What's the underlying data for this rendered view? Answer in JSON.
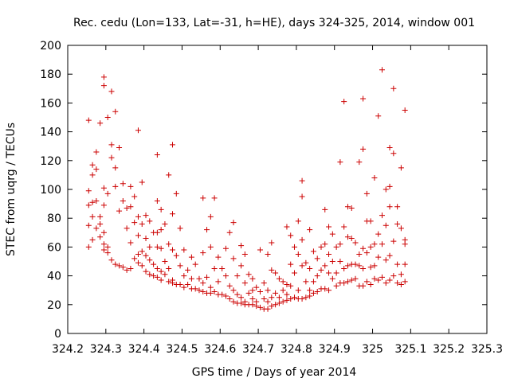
{
  "chart_data": {
    "type": "scatter",
    "title": "Rec. cedu (Lon=133, Lat=-31, h=HE), days 324-325, 2014, window 001",
    "xlabel": "GPS time / Days of year 2014",
    "ylabel": "STEC from uqrg / TECUs",
    "xlim": [
      324.2,
      325.3
    ],
    "ylim": [
      0,
      200
    ],
    "x_ticks": [
      "324.2",
      "324.3",
      "324.4",
      "324.5",
      "324.6",
      "324.7",
      "324.8",
      "324.9",
      "325",
      "325.1",
      "325.2",
      "325.3"
    ],
    "y_ticks": [
      "0",
      "20",
      "40",
      "60",
      "80",
      "100",
      "120",
      "140",
      "160",
      "180",
      "200"
    ],
    "grid": false,
    "legend": "none",
    "marker": "plus",
    "color": "#cc0000",
    "series": [
      {
        "points": [
          [
            324.255,
            148
          ],
          [
            324.255,
            99
          ],
          [
            324.255,
            89
          ],
          [
            324.255,
            75
          ],
          [
            324.255,
            60
          ],
          [
            324.265,
            117
          ],
          [
            324.265,
            110
          ],
          [
            324.265,
            91
          ],
          [
            324.265,
            81
          ],
          [
            324.265,
            65
          ],
          [
            324.275,
            126
          ],
          [
            324.275,
            114
          ],
          [
            324.275,
            92
          ],
          [
            324.275,
            73
          ],
          [
            324.285,
            146
          ],
          [
            324.285,
            81
          ],
          [
            324.285,
            76
          ],
          [
            324.285,
            67
          ],
          [
            324.295,
            178
          ],
          [
            324.295,
            172
          ],
          [
            324.295,
            101
          ],
          [
            324.295,
            89
          ],
          [
            324.295,
            70
          ],
          [
            324.295,
            62
          ],
          [
            324.295,
            58
          ],
          [
            324.305,
            150
          ],
          [
            324.305,
            97
          ],
          [
            324.305,
            60
          ],
          [
            324.305,
            56
          ],
          [
            324.315,
            168
          ],
          [
            324.315,
            131
          ],
          [
            324.315,
            122
          ],
          [
            324.315,
            51
          ],
          [
            324.325,
            154
          ],
          [
            324.325,
            115
          ],
          [
            324.325,
            102
          ],
          [
            324.325,
            48
          ],
          [
            324.335,
            129
          ],
          [
            324.335,
            85
          ],
          [
            324.335,
            47
          ],
          [
            324.345,
            104
          ],
          [
            324.345,
            92
          ],
          [
            324.345,
            46
          ],
          [
            324.355,
            87
          ],
          [
            324.355,
            73
          ],
          [
            324.355,
            44
          ],
          [
            324.365,
            102
          ],
          [
            324.365,
            88
          ],
          [
            324.365,
            63
          ],
          [
            324.365,
            45
          ],
          [
            324.375,
            95
          ],
          [
            324.375,
            77
          ],
          [
            324.375,
            52
          ],
          [
            324.385,
            141
          ],
          [
            324.385,
            81
          ],
          [
            324.385,
            68
          ],
          [
            324.385,
            55
          ],
          [
            324.385,
            49
          ],
          [
            324.395,
            105
          ],
          [
            324.395,
            76
          ],
          [
            324.395,
            57
          ],
          [
            324.395,
            47
          ],
          [
            324.405,
            82
          ],
          [
            324.405,
            66
          ],
          [
            324.405,
            54
          ],
          [
            324.405,
            43
          ],
          [
            324.415,
            78
          ],
          [
            324.415,
            60
          ],
          [
            324.415,
            51
          ],
          [
            324.415,
            41
          ],
          [
            324.425,
            70
          ],
          [
            324.425,
            48
          ],
          [
            324.425,
            40
          ],
          [
            324.435,
            124
          ],
          [
            324.435,
            92
          ],
          [
            324.435,
            70
          ],
          [
            324.435,
            60
          ],
          [
            324.435,
            45
          ],
          [
            324.435,
            39
          ],
          [
            324.445,
            86
          ],
          [
            324.445,
            72
          ],
          [
            324.445,
            59
          ],
          [
            324.445,
            43
          ],
          [
            324.445,
            37
          ],
          [
            324.455,
            76
          ],
          [
            324.455,
            50
          ],
          [
            324.455,
            41
          ],
          [
            324.465,
            110
          ],
          [
            324.465,
            62
          ],
          [
            324.465,
            45
          ],
          [
            324.465,
            36
          ],
          [
            324.475,
            131
          ],
          [
            324.475,
            83
          ],
          [
            324.475,
            58
          ],
          [
            324.475,
            37
          ],
          [
            324.475,
            35
          ],
          [
            324.485,
            97
          ],
          [
            324.485,
            54
          ],
          [
            324.485,
            34
          ],
          [
            324.495,
            73
          ],
          [
            324.495,
            47
          ],
          [
            324.495,
            34
          ],
          [
            324.505,
            58
          ],
          [
            324.505,
            40
          ],
          [
            324.505,
            32
          ],
          [
            324.515,
            44
          ],
          [
            324.515,
            34
          ],
          [
            324.525,
            53
          ],
          [
            324.525,
            38
          ],
          [
            324.525,
            31
          ],
          [
            324.535,
            48
          ],
          [
            324.535,
            31
          ],
          [
            324.545,
            38
          ],
          [
            324.545,
            30
          ],
          [
            324.555,
            94
          ],
          [
            324.555,
            56
          ],
          [
            324.555,
            35
          ],
          [
            324.555,
            29
          ],
          [
            324.565,
            72
          ],
          [
            324.565,
            39
          ],
          [
            324.565,
            28
          ],
          [
            324.575,
            81
          ],
          [
            324.575,
            60
          ],
          [
            324.575,
            32
          ],
          [
            324.575,
            28
          ],
          [
            324.585,
            94
          ],
          [
            324.585,
            45
          ],
          [
            324.585,
            29
          ],
          [
            324.595,
            53
          ],
          [
            324.595,
            36
          ],
          [
            324.595,
            27
          ],
          [
            324.605,
            45
          ],
          [
            324.605,
            27
          ],
          [
            324.615,
            59
          ],
          [
            324.615,
            40
          ],
          [
            324.615,
            26
          ],
          [
            324.625,
            70
          ],
          [
            324.625,
            33
          ],
          [
            324.625,
            24
          ],
          [
            324.635,
            77
          ],
          [
            324.635,
            52
          ],
          [
            324.635,
            30
          ],
          [
            324.635,
            22
          ],
          [
            324.645,
            40
          ],
          [
            324.645,
            27
          ],
          [
            324.645,
            21
          ],
          [
            324.655,
            61
          ],
          [
            324.655,
            47
          ],
          [
            324.655,
            25
          ],
          [
            324.655,
            21
          ],
          [
            324.665,
            55
          ],
          [
            324.665,
            35
          ],
          [
            324.665,
            22
          ],
          [
            324.665,
            20
          ],
          [
            324.675,
            41
          ],
          [
            324.675,
            28
          ],
          [
            324.675,
            20
          ],
          [
            324.685,
            38
          ],
          [
            324.685,
            30
          ],
          [
            324.685,
            24
          ],
          [
            324.685,
            20
          ],
          [
            324.695,
            32
          ],
          [
            324.695,
            22
          ],
          [
            324.695,
            19
          ],
          [
            324.705,
            58
          ],
          [
            324.705,
            29
          ],
          [
            324.705,
            18
          ],
          [
            324.715,
            35
          ],
          [
            324.715,
            24
          ],
          [
            324.715,
            17
          ],
          [
            324.725,
            55
          ],
          [
            324.725,
            30
          ],
          [
            324.725,
            22
          ],
          [
            324.725,
            17
          ],
          [
            324.735,
            63
          ],
          [
            324.735,
            44
          ],
          [
            324.735,
            25
          ],
          [
            324.735,
            19
          ],
          [
            324.745,
            42
          ],
          [
            324.745,
            28
          ],
          [
            324.745,
            20
          ],
          [
            324.755,
            38
          ],
          [
            324.755,
            25
          ],
          [
            324.755,
            21
          ],
          [
            324.765,
            36
          ],
          [
            324.765,
            30
          ],
          [
            324.765,
            22
          ],
          [
            324.775,
            74
          ],
          [
            324.775,
            34
          ],
          [
            324.775,
            27
          ],
          [
            324.775,
            23
          ],
          [
            324.785,
            68
          ],
          [
            324.785,
            48
          ],
          [
            324.785,
            33
          ],
          [
            324.785,
            24
          ],
          [
            324.795,
            60
          ],
          [
            324.795,
            42
          ],
          [
            324.795,
            25
          ],
          [
            324.805,
            78
          ],
          [
            324.805,
            55
          ],
          [
            324.805,
            30
          ],
          [
            324.805,
            24
          ],
          [
            324.815,
            106
          ],
          [
            324.815,
            95
          ],
          [
            324.815,
            65
          ],
          [
            324.815,
            47
          ],
          [
            324.815,
            24
          ],
          [
            324.825,
            49
          ],
          [
            324.825,
            36
          ],
          [
            324.825,
            25
          ],
          [
            324.835,
            72
          ],
          [
            324.835,
            45
          ],
          [
            324.835,
            30
          ],
          [
            324.835,
            26
          ],
          [
            324.845,
            57
          ],
          [
            324.845,
            36
          ],
          [
            324.845,
            28
          ],
          [
            324.855,
            52
          ],
          [
            324.855,
            40
          ],
          [
            324.855,
            29
          ],
          [
            324.865,
            60
          ],
          [
            324.865,
            44
          ],
          [
            324.865,
            31
          ],
          [
            324.875,
            86
          ],
          [
            324.875,
            62
          ],
          [
            324.875,
            47
          ],
          [
            324.875,
            31
          ],
          [
            324.885,
            74
          ],
          [
            324.885,
            55
          ],
          [
            324.885,
            42
          ],
          [
            324.885,
            30
          ],
          [
            324.895,
            69
          ],
          [
            324.895,
            50
          ],
          [
            324.895,
            38
          ],
          [
            324.905,
            60
          ],
          [
            324.905,
            42
          ],
          [
            324.905,
            33
          ],
          [
            324.915,
            119
          ],
          [
            324.915,
            62
          ],
          [
            324.915,
            50
          ],
          [
            324.915,
            35
          ],
          [
            324.925,
            161
          ],
          [
            324.925,
            74
          ],
          [
            324.925,
            45
          ],
          [
            324.925,
            35
          ],
          [
            324.935,
            88
          ],
          [
            324.935,
            67
          ],
          [
            324.935,
            47
          ],
          [
            324.935,
            36
          ],
          [
            324.945,
            87
          ],
          [
            324.945,
            66
          ],
          [
            324.945,
            48
          ],
          [
            324.945,
            37
          ],
          [
            324.955,
            63
          ],
          [
            324.955,
            48
          ],
          [
            324.955,
            38
          ],
          [
            324.965,
            119
          ],
          [
            324.965,
            55
          ],
          [
            324.965,
            47
          ],
          [
            324.965,
            33
          ],
          [
            324.975,
            163
          ],
          [
            324.975,
            128
          ],
          [
            324.975,
            59
          ],
          [
            324.975,
            45
          ],
          [
            324.975,
            33
          ],
          [
            324.985,
            97
          ],
          [
            324.985,
            78
          ],
          [
            324.985,
            56
          ],
          [
            324.985,
            36
          ],
          [
            324.995,
            78
          ],
          [
            324.995,
            60
          ],
          [
            324.995,
            46
          ],
          [
            324.995,
            34
          ],
          [
            325.005,
            108
          ],
          [
            325.005,
            62
          ],
          [
            325.005,
            47
          ],
          [
            325.005,
            38
          ],
          [
            325.015,
            151
          ],
          [
            325.015,
            69
          ],
          [
            325.015,
            53
          ],
          [
            325.015,
            37
          ],
          [
            325.025,
            183
          ],
          [
            325.025,
            82
          ],
          [
            325.025,
            62
          ],
          [
            325.025,
            39
          ],
          [
            325.035,
            100
          ],
          [
            325.035,
            75
          ],
          [
            325.035,
            51
          ],
          [
            325.035,
            35
          ],
          [
            325.045,
            129
          ],
          [
            325.045,
            102
          ],
          [
            325.045,
            88
          ],
          [
            325.045,
            54
          ],
          [
            325.045,
            37
          ],
          [
            325.055,
            170
          ],
          [
            325.055,
            125
          ],
          [
            325.055,
            64
          ],
          [
            325.055,
            40
          ],
          [
            325.065,
            88
          ],
          [
            325.065,
            76
          ],
          [
            325.065,
            48
          ],
          [
            325.065,
            35
          ],
          [
            325.075,
            115
          ],
          [
            325.075,
            73
          ],
          [
            325.075,
            41
          ],
          [
            325.075,
            34
          ],
          [
            325.085,
            155
          ],
          [
            325.085,
            65
          ],
          [
            325.085,
            62
          ],
          [
            325.085,
            48
          ],
          [
            325.085,
            36
          ]
        ]
      }
    ]
  }
}
